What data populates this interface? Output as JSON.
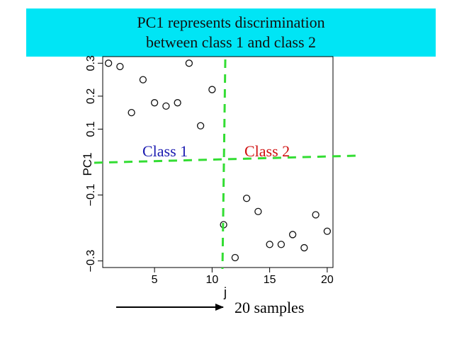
{
  "banner": {
    "line1": "PC1 represents discrimination",
    "line2": "between class 1 and class 2",
    "color": "#00e5f5"
  },
  "annotations": {
    "class1": "Class 1",
    "class1_color": "#1a1ab0",
    "class2": "Class 2",
    "class2_color": "#d01010",
    "divider_color": "#33dd33",
    "samples_label": "20 samples"
  },
  "chart_data": {
    "type": "scatter",
    "xlabel": "j",
    "ylabel": "PC1",
    "xlim": [
      0.5,
      20.5
    ],
    "ylim": [
      -0.32,
      0.32
    ],
    "x_ticks": [
      5,
      10,
      15,
      20
    ],
    "x_tick_labels": [
      "5",
      "10",
      "15",
      "20"
    ],
    "y_ticks": [
      -0.3,
      -0.1,
      0.1,
      0.2,
      0.3
    ],
    "y_tick_labels": [
      "−0.3",
      "−0.1",
      "0.1",
      "0.2",
      "0.3"
    ],
    "x": [
      1,
      2,
      3,
      4,
      5,
      6,
      7,
      8,
      9,
      10,
      11,
      12,
      13,
      14,
      15,
      16,
      17,
      18,
      19,
      20
    ],
    "y": [
      0.3,
      0.29,
      0.15,
      0.25,
      0.18,
      0.17,
      0.18,
      0.3,
      0.11,
      0.22,
      -0.19,
      -0.29,
      -0.11,
      -0.15,
      -0.25,
      -0.25,
      -0.22,
      -0.26,
      -0.16,
      -0.21
    ],
    "marker": "open-circle",
    "grid": false
  }
}
